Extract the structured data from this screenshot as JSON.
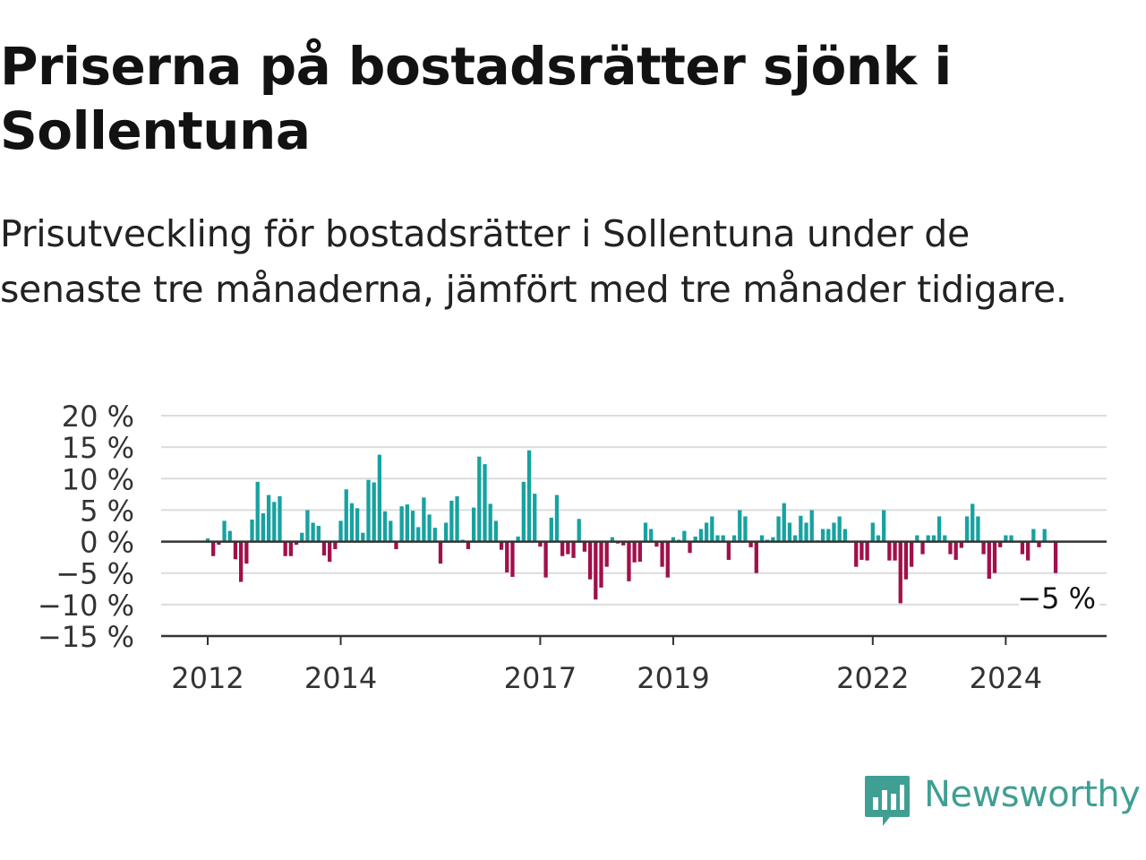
{
  "title": "Priserna på bostadsrätter sjönk i Sollentuna",
  "subtitle": "Prisutveckling för bostadsrätter i Sollentuna under de senaste tre månaderna, jämfört med tre månader tidigare.",
  "brand": {
    "name": "Newsworthy",
    "icon": "newsworthy-logo-icon",
    "color": "#3f9f93"
  },
  "colors": {
    "positive": "#17a2a0",
    "negative": "#a0104b",
    "grid": "#dcdcdc",
    "axis": "#333333"
  },
  "chart_data": {
    "type": "bar",
    "title": "",
    "xlabel": "",
    "ylabel": "",
    "ylim": [
      -15,
      20
    ],
    "y_ticks": [
      20,
      15,
      10,
      5,
      0,
      -5,
      -10,
      -15
    ],
    "y_tick_labels": [
      "20 %",
      "15 %",
      "10 %",
      "5 %",
      "0 %",
      "−5 %",
      "−10 %",
      "−15 %"
    ],
    "x_tick_labels": [
      "2012",
      "2014",
      "2017",
      "2019",
      "2022",
      "2024"
    ],
    "x_tick_index": [
      0,
      24,
      60,
      84,
      120,
      144
    ],
    "start_month": "2012-01",
    "grid": true,
    "annotation": "−5 %",
    "series": [
      {
        "values": [
          0.5,
          -2.3,
          -0.5,
          3.3,
          1.7,
          -2.8,
          -6.4,
          -3.5,
          3.5,
          9.5,
          4.5,
          7.4,
          6.3,
          7.2,
          -2.3,
          -2.3,
          -0.5,
          1.4,
          5.0,
          3.0,
          2.5,
          -2.2,
          -3.2,
          -1.2,
          3.3,
          8.3,
          6.1,
          5.3,
          1.4,
          9.8,
          9.4,
          13.8,
          4.8,
          3.3,
          -1.2,
          5.6,
          5.9,
          4.9,
          2.3,
          7.0,
          4.3,
          2.2,
          -3.5,
          3.0,
          6.5,
          7.2,
          0.3,
          -1.2,
          5.4,
          13.5,
          12.3,
          6.0,
          3.3,
          -1.3,
          -4.9,
          -5.6,
          0.8,
          9.5,
          14.5,
          7.6,
          -0.8,
          -5.7,
          3.8,
          7.4,
          -2.3,
          -2.0,
          -2.6,
          3.6,
          -1.6,
          -6.0,
          -9.2,
          -7.3,
          -4.0,
          0.7,
          -0.3,
          -0.6,
          -6.3,
          -3.3,
          -3.2,
          3.0,
          2.0,
          -0.8,
          -4.0,
          -5.7,
          0.7,
          0.3,
          1.7,
          -1.8,
          0.8,
          2.0,
          3.0,
          4.0,
          1.0,
          1.0,
          -2.9,
          1.0,
          5.0,
          4.0,
          -0.9,
          -5.0,
          1.0,
          0.3,
          0.7,
          4.0,
          6.1,
          3.0,
          1.0,
          4.1,
          3.0,
          5.0,
          0.2,
          2.0,
          2.0,
          3.0,
          4.0,
          2.0,
          0.1,
          -4.0,
          -2.9,
          -3.0,
          3.0,
          1.0,
          5.0,
          -3.0,
          -3.0,
          -9.8,
          -6.0,
          -4.0,
          1.0,
          -2.0,
          1.0,
          1.0,
          4.0,
          1.0,
          -2.0,
          -2.9,
          -1.0,
          4.0,
          6.0,
          4.0,
          -2.0,
          -5.9,
          -5.0,
          -0.9,
          1.0,
          1.0,
          0.1,
          -2.0,
          -3.0,
          2.0,
          -0.9,
          2.0,
          0.1,
          -5.0
        ]
      }
    ]
  }
}
